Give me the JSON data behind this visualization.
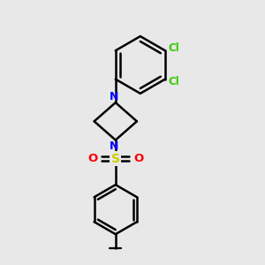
{
  "background_color": "#e8e8e8",
  "bond_color": "#000000",
  "bond_width": 1.8,
  "N_color": "#0000ff",
  "O_color": "#ff0000",
  "S_color": "#cccc00",
  "Cl_color": "#33cc00",
  "figsize": [
    3.0,
    3.0
  ],
  "dpi": 100,
  "xlim": [
    0,
    10
  ],
  "ylim": [
    0,
    10
  ]
}
